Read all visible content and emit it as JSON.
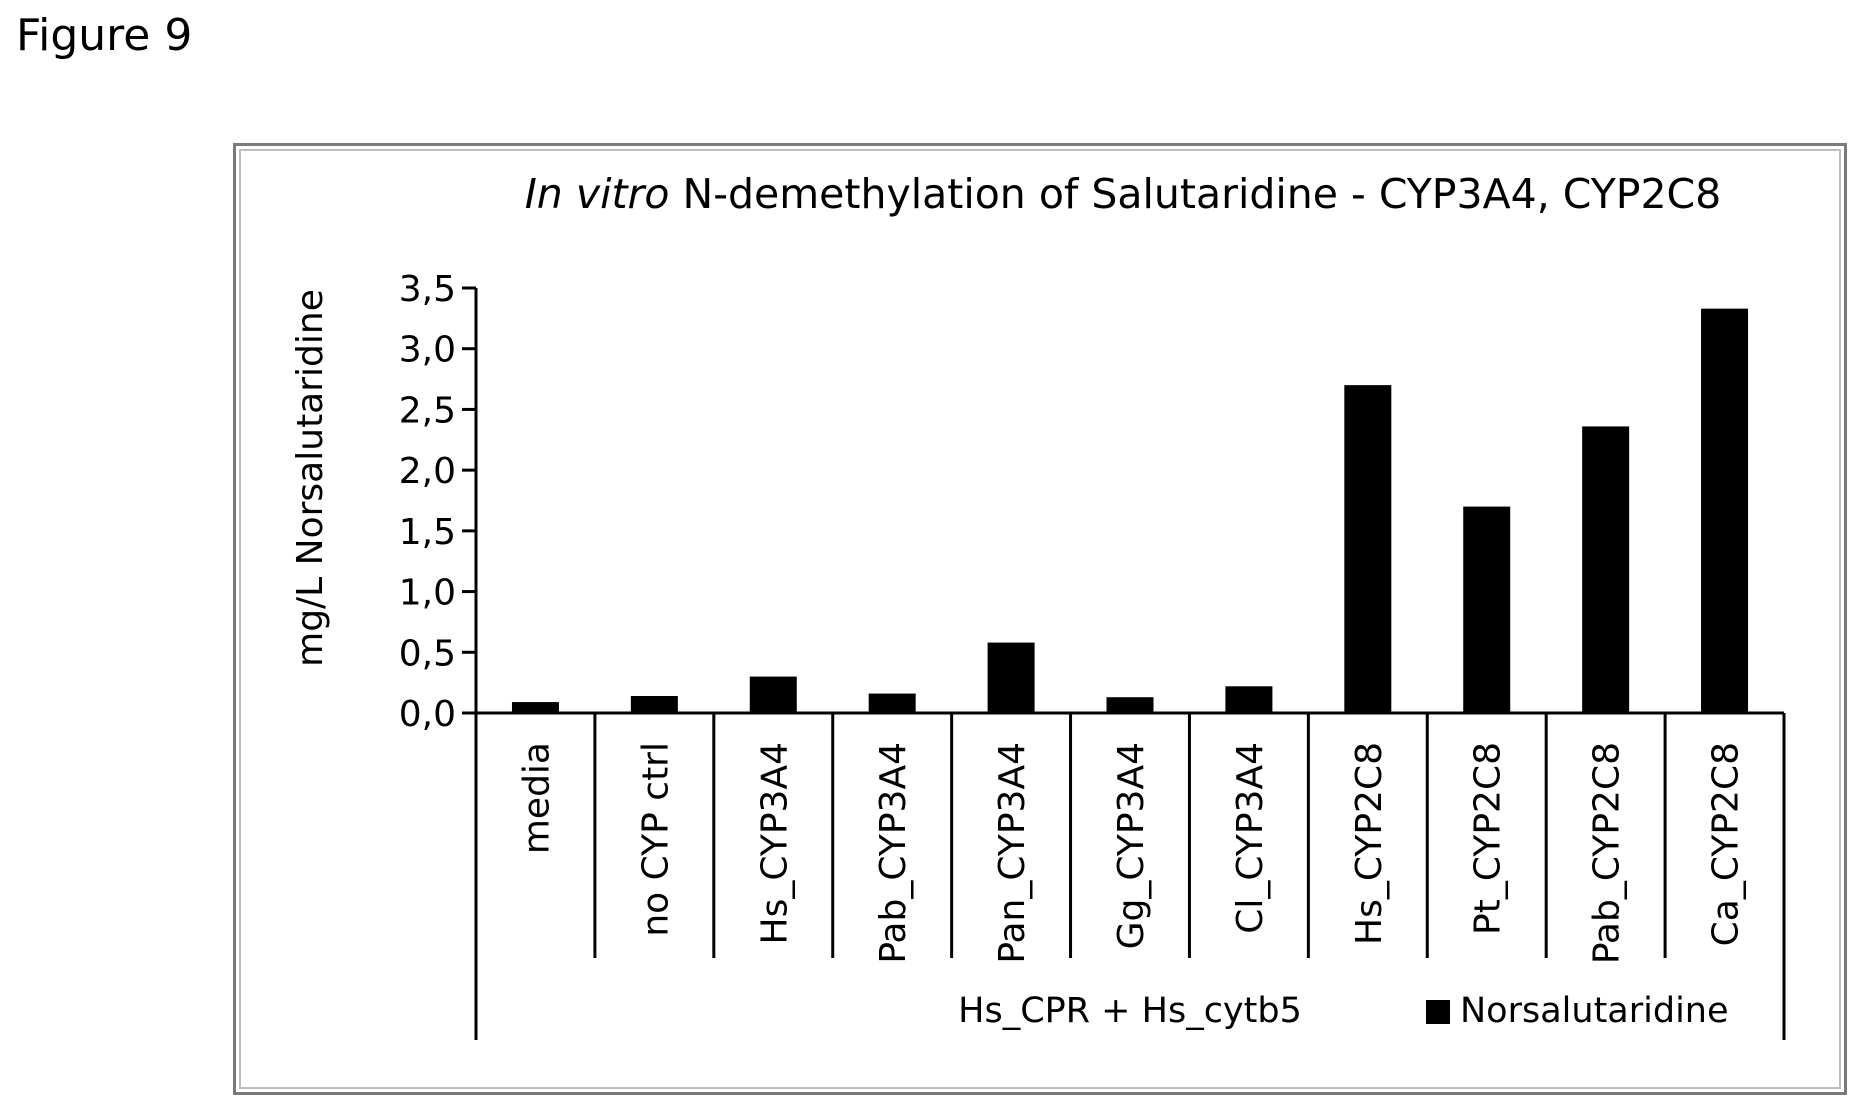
{
  "figure_label": "Figure 9",
  "chart_data": {
    "type": "bar",
    "title_italic": "In vitro",
    "title_rest": " N-demethylation of Salutaridine - CYP3A4, CYP2C8",
    "ylabel": "mg/L Norsalutaridine",
    "xlabel": "",
    "ylim": [
      0,
      3.5
    ],
    "yticks": [
      "0,0",
      "0,5",
      "1,0",
      "1,5",
      "2,0",
      "2,5",
      "3,0",
      "3,5"
    ],
    "categories": [
      "media",
      "no CYP ctrl",
      "Hs_CYP3A4",
      "Pab_CYP3A4",
      "Pan_CYP3A4",
      "Gg_CYP3A4",
      "Cl_CYP3A4",
      "Hs_CYP2C8",
      "Pt_CYP2C8",
      "Pab_CYP2C8",
      "Ca_CYP2C8"
    ],
    "group_label": "Hs_CPR + Hs_cytb5",
    "group_start_index": 2,
    "series": [
      {
        "name": "Norsalutaridine",
        "color": "#000000",
        "values": [
          0.09,
          0.14,
          0.3,
          0.16,
          0.58,
          0.13,
          0.22,
          2.7,
          1.7,
          2.36,
          3.33
        ]
      }
    ],
    "legend_position": "bottom-right",
    "grid": false
  }
}
